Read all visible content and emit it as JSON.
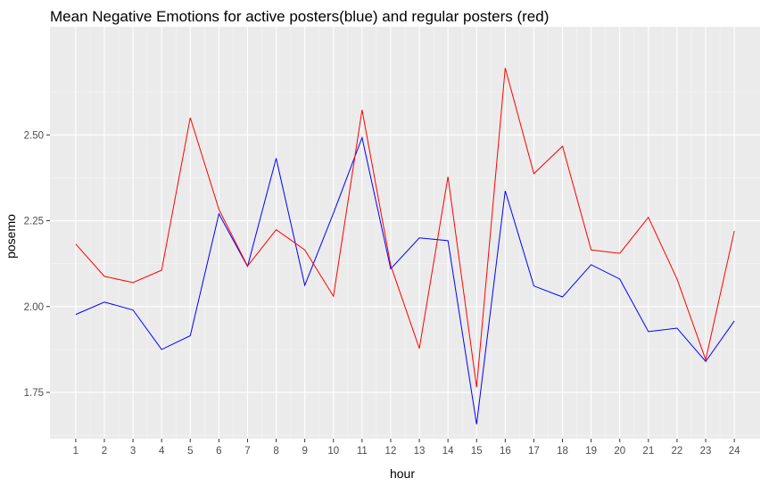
{
  "chart_data": {
    "type": "line",
    "title": "Mean Negative Emotions for active posters(blue) and regular posters (red)",
    "xlabel": "hour",
    "ylabel": "posemo",
    "x": [
      1,
      2,
      3,
      4,
      5,
      6,
      7,
      8,
      9,
      10,
      11,
      12,
      13,
      14,
      15,
      16,
      17,
      18,
      19,
      20,
      21,
      22,
      23,
      24
    ],
    "xlim": [
      0.1,
      24.9
    ],
    "ylim": [
      1.615,
      2.815
    ],
    "yticks": [
      "1.75",
      "2.00",
      "2.25",
      "2.50"
    ],
    "yticks_values": [
      1.75,
      2.0,
      2.25,
      2.5
    ],
    "grid": true,
    "legend": "none",
    "series": [
      {
        "color": "#0000ff",
        "values": [
          1.977,
          2.013,
          1.99,
          1.875,
          1.915,
          2.27,
          2.117,
          2.432,
          2.062,
          2.272,
          2.492,
          2.11,
          2.2,
          2.192,
          1.657,
          2.337,
          2.06,
          2.028,
          2.122,
          2.08,
          1.927,
          1.937,
          1.84,
          1.958
        ]
      },
      {
        "color": "#ff0000",
        "values": [
          2.182,
          2.088,
          2.07,
          2.106,
          2.55,
          2.283,
          2.118,
          2.224,
          2.165,
          2.03,
          2.573,
          2.12,
          1.878,
          2.378,
          1.765,
          2.695,
          2.387,
          2.467,
          2.165,
          2.155,
          2.26,
          2.08,
          1.845,
          2.22
        ]
      }
    ]
  }
}
